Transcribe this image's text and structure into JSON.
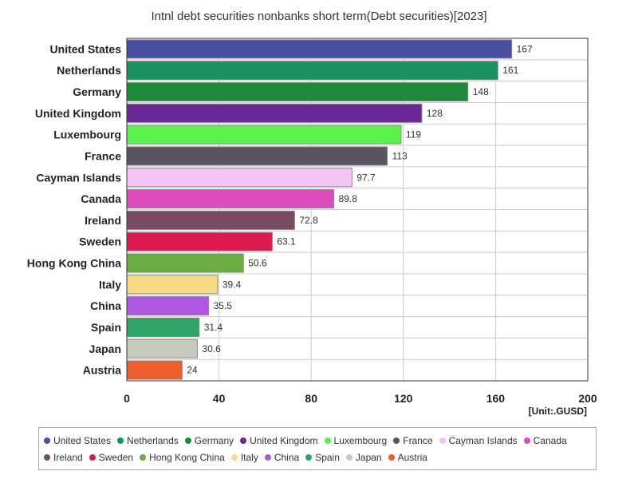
{
  "chart_data": {
    "type": "bar",
    "orientation": "horizontal",
    "title": "Intnl debt securities nonbanks short term(Debt securities)[2023]",
    "unit": "[Unit:.GUSD]",
    "xlim": [
      0,
      200
    ],
    "xticks": [
      "0",
      "40",
      "80",
      "120",
      "160",
      "200"
    ],
    "grid": true,
    "legend_position": "bottom",
    "categories": [
      "United States",
      "Netherlands",
      "Germany",
      "United Kingdom",
      "Luxembourg",
      "France",
      "Cayman Islands",
      "Canada",
      "Ireland",
      "Sweden",
      "Hong Kong China",
      "Italy",
      "China",
      "Spain",
      "Japan",
      "Austria"
    ],
    "values": [
      167,
      161,
      148,
      128,
      119,
      113,
      97.7,
      89.8,
      72.8,
      63.1,
      50.6,
      39.4,
      35.5,
      31.4,
      30.6,
      24
    ],
    "value_labels": [
      "167",
      "161",
      "148",
      "128",
      "119",
      "113",
      "97.7",
      "89.8",
      "72.8",
      "63.1",
      "50.6",
      "39.4",
      "35.5",
      "31.4",
      "30.6",
      "24"
    ],
    "colors": [
      "#4a4ea0",
      "#1c9160",
      "#1e8a3c",
      "#6a2896",
      "#5cf04a",
      "#5a5362",
      "#f4c4f4",
      "#dc4cbc",
      "#7a4c64",
      "#dc1a50",
      "#6aae42",
      "#f8da84",
      "#ae58e2",
      "#2ea466",
      "#c6cabc",
      "#ec5e2c"
    ]
  }
}
